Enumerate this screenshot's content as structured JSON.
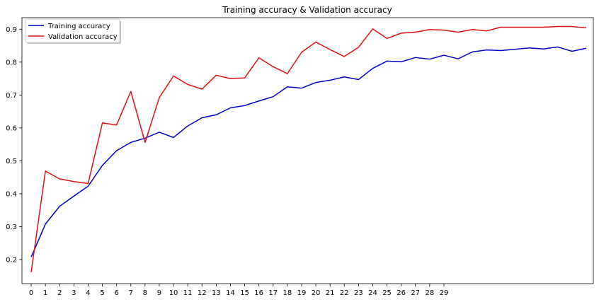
{
  "chart_data": {
    "type": "line",
    "title": "Training accuracy & Validation accuracy",
    "xlabel": "",
    "ylabel": "",
    "x_ticks": [
      0,
      1,
      2,
      3,
      4,
      5,
      6,
      7,
      8,
      9,
      10,
      11,
      12,
      13,
      14,
      15,
      16,
      17,
      18,
      19,
      20,
      21,
      22,
      23,
      24,
      25,
      26,
      27,
      28,
      29
    ],
    "y_ticks": [
      0.2,
      0.3,
      0.4,
      0.5,
      0.6,
      0.7,
      0.8,
      0.9
    ],
    "xlim": [
      -0.65,
      39.5
    ],
    "ylim": [
      0.127,
      0.935
    ],
    "grid": false,
    "legend": "top-left",
    "x": [
      0,
      1,
      2,
      3,
      4,
      5,
      6,
      7,
      8,
      9,
      10,
      11,
      12,
      13,
      14,
      15,
      16,
      17,
      18,
      19,
      20,
      21,
      22,
      23,
      24,
      25,
      26,
      27,
      28,
      29,
      30,
      31,
      32,
      33,
      34,
      35,
      36,
      37,
      38,
      39
    ],
    "series": [
      {
        "name": "Training accuracy",
        "color": "#0000cc",
        "values": [
          0.208,
          0.308,
          0.362,
          0.393,
          0.423,
          0.486,
          0.531,
          0.556,
          0.569,
          0.587,
          0.571,
          0.606,
          0.631,
          0.64,
          0.661,
          0.668,
          0.682,
          0.695,
          0.725,
          0.721,
          0.738,
          0.745,
          0.755,
          0.747,
          0.781,
          0.803,
          0.801,
          0.814,
          0.809,
          0.821,
          0.81,
          0.831,
          0.837,
          0.835,
          0.839,
          0.843,
          0.84,
          0.846,
          0.833,
          0.842
        ]
      },
      {
        "name": "Validation accuracy",
        "color": "#dd1111",
        "values": [
          0.162,
          0.469,
          0.445,
          0.437,
          0.431,
          0.615,
          0.609,
          0.711,
          0.556,
          0.692,
          0.758,
          0.732,
          0.718,
          0.76,
          0.75,
          0.752,
          0.813,
          0.786,
          0.765,
          0.83,
          0.861,
          0.838,
          0.817,
          0.845,
          0.901,
          0.872,
          0.888,
          0.891,
          0.899,
          0.897,
          0.891,
          0.899,
          0.895,
          0.906,
          0.906,
          0.906,
          0.906,
          0.908,
          0.908,
          0.904
        ]
      }
    ]
  }
}
